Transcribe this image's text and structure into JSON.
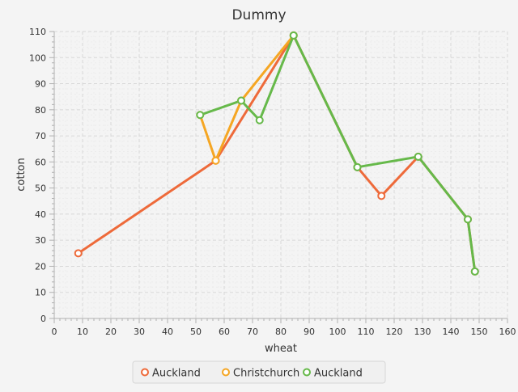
{
  "chart_data": {
    "type": "line",
    "title": "Dummy",
    "xlabel": "wheat",
    "ylabel": "cotton",
    "xlim": [
      0,
      160
    ],
    "ylim": [
      0,
      110
    ],
    "x_ticks": [
      0,
      10,
      20,
      30,
      40,
      50,
      60,
      70,
      80,
      90,
      100,
      110,
      120,
      130,
      140,
      150,
      160
    ],
    "y_ticks": [
      0,
      10,
      20,
      30,
      40,
      50,
      60,
      70,
      80,
      90,
      100,
      110
    ],
    "grid": true,
    "legend_position": "bottom",
    "series": [
      {
        "name": "Auckland",
        "color": "#ee6a3a",
        "points": [
          [
            8.5,
            25
          ],
          [
            57,
            60.5
          ],
          [
            84.5,
            108.5
          ],
          [
            107,
            58
          ],
          [
            115.5,
            47
          ],
          [
            128.5,
            62
          ],
          [
            146,
            38
          ],
          [
            148.5,
            18
          ]
        ]
      },
      {
        "name": "Christchurch",
        "color": "#f5a623",
        "points": [
          [
            51.5,
            78
          ],
          [
            57,
            60.5
          ],
          [
            66,
            83.5
          ],
          [
            84.5,
            108.5
          ]
        ]
      },
      {
        "name": "Auckland",
        "color": "#66b94a",
        "points": [
          [
            51.5,
            78
          ],
          [
            66,
            83.5
          ],
          [
            72.5,
            76
          ],
          [
            84.5,
            108.5
          ],
          [
            107,
            58
          ],
          [
            128.5,
            62
          ],
          [
            146,
            38
          ],
          [
            148.5,
            18
          ]
        ]
      }
    ]
  }
}
